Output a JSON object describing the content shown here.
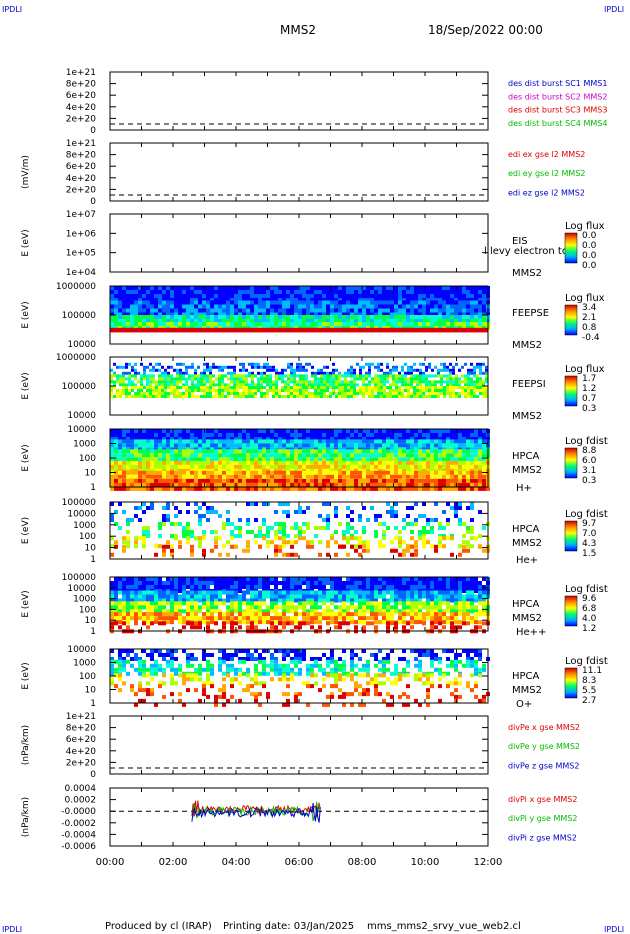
{
  "header": {
    "corner_label": "IPDLI",
    "spacecraft": "MMS2",
    "date": "18/Sep/2022 00:00"
  },
  "footer": {
    "credit": "Produced by cl (IRAP)",
    "printing_date": "Printing date: 03/Jan/2025",
    "filename": "mms_mms2_srvy_vue_web2.cl"
  },
  "colors": {
    "red": "#dd0000",
    "green": "#00bb00",
    "blue": "#0000cc",
    "magenta": "#cc00cc",
    "black": "#000000"
  },
  "x_axis": {
    "range_hours": [
      0,
      12
    ],
    "tick_labels": [
      "00:00",
      "02:00",
      "04:00",
      "06:00",
      "08:00",
      "10:00",
      "12:00"
    ]
  },
  "chart_data": [
    {
      "type": "line",
      "ylabel": "",
      "yticks": [
        "1e+21",
        "8e+20",
        "6e+20",
        "4e+20",
        "2e+20",
        "0"
      ],
      "zero_line": true,
      "legend": [
        {
          "text": "des dist burst SC1 MMS1",
          "color": "#0000cc"
        },
        {
          "text": "des dist burst SC2 MMS2",
          "color": "#cc00cc"
        },
        {
          "text": "des dist burst SC3 MMS3",
          "color": "#dd0000"
        },
        {
          "text": "des dist burst SC4 MMS4",
          "color": "#00bb00"
        }
      ]
    },
    {
      "type": "line",
      "ylabel": "(mV/m)",
      "yticks": [
        "1e+21",
        "8e+20",
        "6e+20",
        "4e+20",
        "2e+20",
        "0"
      ],
      "zero_line": true,
      "legend": [
        {
          "text": "edi ex gse l2 MMS2",
          "color": "#dd0000"
        },
        {
          "text": "edi ey gse l2 MMS2",
          "color": "#00bb00"
        },
        {
          "text": "edi ez gse l2 MMS2",
          "color": "#0000cc"
        }
      ]
    },
    {
      "type": "heatmap",
      "ylabel": "E (eV)",
      "yticks": [
        "1e+07",
        "1e+06",
        "1e+05",
        "1e+04"
      ],
      "instrument": "EIS",
      "overlay_text": "l levy electron to",
      "sc": "MMS2",
      "species": "",
      "cbar_title": "Log flux",
      "cbar_ticks": [
        "0.0",
        "0.0",
        "0.0",
        "0.0"
      ],
      "pattern": "empty"
    },
    {
      "type": "heatmap",
      "ylabel": "E (eV)",
      "yticks": [
        "1000000",
        "100000",
        "10000"
      ],
      "instrument": "FEEPSE",
      "sc": "MMS2",
      "species": "",
      "cbar_title": "Log flux",
      "cbar_ticks": [
        "3.4",
        "2.1",
        "0.8",
        "-0.4"
      ],
      "pattern": "feepse"
    },
    {
      "type": "heatmap",
      "ylabel": "E (eV)",
      "yticks": [
        "1000000",
        "100000",
        "10000"
      ],
      "instrument": "FEEPSI",
      "sc": "MMS2",
      "species": "",
      "cbar_title": "Log flux",
      "cbar_ticks": [
        "1.7",
        "1.2",
        "0.7",
        "0.3"
      ],
      "pattern": "feepsi"
    },
    {
      "type": "heatmap",
      "ylabel": "E (eV)",
      "yticks": [
        "10000",
        "1000",
        "100",
        "10",
        "1"
      ],
      "instrument": "HPCA",
      "sc": "MMS2",
      "species": "H+",
      "cbar_title": "Log fdist",
      "cbar_ticks": [
        "8.8",
        "6.0",
        "3.1",
        "0.3"
      ],
      "pattern": "hplus"
    },
    {
      "type": "heatmap",
      "ylabel": "E (eV)",
      "yticks": [
        "100000",
        "10000",
        "1000",
        "100",
        "10",
        "1"
      ],
      "instrument": "HPCA",
      "sc": "MMS2",
      "species": "He+",
      "cbar_title": "Log fdist",
      "cbar_ticks": [
        "9.7",
        "7.0",
        "4.3",
        "1.5"
      ],
      "pattern": "heplus"
    },
    {
      "type": "heatmap",
      "ylabel": "E (eV)",
      "yticks": [
        "100000",
        "10000",
        "1000",
        "100",
        "10",
        "1"
      ],
      "instrument": "HPCA",
      "sc": "MMS2",
      "species": "He++",
      "cbar_title": "Log fdist",
      "cbar_ticks": [
        "9.6",
        "6.8",
        "4.0",
        "1.2"
      ],
      "pattern": "hepp"
    },
    {
      "type": "heatmap",
      "ylabel": "E (eV)",
      "yticks": [
        "10000",
        "1000",
        "100",
        "10",
        "1"
      ],
      "instrument": "HPCA",
      "sc": "MMS2",
      "species": "O+",
      "cbar_title": "Log fdist",
      "cbar_ticks": [
        "11.1",
        "8.3",
        "5.5",
        "2.7"
      ],
      "pattern": "oplus"
    },
    {
      "type": "line",
      "ylabel": "(nPa/km)",
      "yticks": [
        "1e+21",
        "8e+20",
        "6e+20",
        "4e+20",
        "2e+20",
        "0"
      ],
      "zero_line": true,
      "legend": [
        {
          "text": "divPe x gse MMS2",
          "color": "#dd0000"
        },
        {
          "text": "divPe y gse MMS2",
          "color": "#00bb00"
        },
        {
          "text": "divPe z gse MMS2",
          "color": "#0000cc"
        }
      ]
    },
    {
      "type": "line",
      "ylabel": "(nPa/km)",
      "yticks": [
        "0.0004",
        "0.0002",
        "-0.0000",
        "-0.0002",
        "-0.0004",
        "-0.0006"
      ],
      "ylim": [
        -0.0006,
        0.0004
      ],
      "zero_line": true,
      "legend": [
        {
          "text": "divPi x gse MMS2",
          "color": "#dd0000"
        },
        {
          "text": "divPi y gse MMS2",
          "color": "#00bb00"
        },
        {
          "text": "divPi z gse MMS2",
          "color": "#0000cc"
        }
      ],
      "data_time_range_hours": [
        2.6,
        6.7
      ]
    }
  ]
}
